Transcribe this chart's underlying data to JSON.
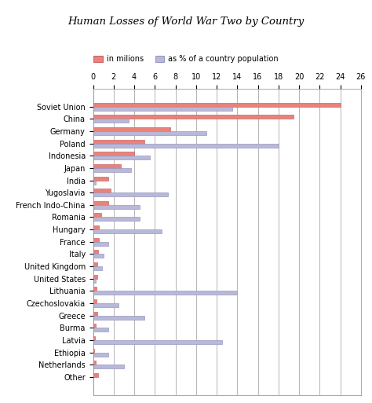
{
  "title": "Human Losses of World War Two by Country",
  "legend_millions": "in milions",
  "legend_percent": "as % of a country population",
  "countries": [
    "Soviet Union",
    "China",
    "Germany",
    "Poland",
    "Indonesia",
    "Japan",
    "India",
    "Yugoslavia",
    "French Indo-China",
    "Romania",
    "Hungary",
    "France",
    "Italy",
    "United Kingdom",
    "United States",
    "Lithuania",
    "Czechoslovakia",
    "Greece",
    "Burma",
    "Latvia",
    "Ethiopia",
    "Netherlands",
    "Other"
  ],
  "millions": [
    24.0,
    19.5,
    7.5,
    5.0,
    4.0,
    2.7,
    1.5,
    1.7,
    1.5,
    0.8,
    0.6,
    0.6,
    0.5,
    0.45,
    0.4,
    0.35,
    0.35,
    0.4,
    0.25,
    0.2,
    0.1,
    0.25,
    0.5
  ],
  "percent": [
    13.5,
    3.5,
    11.0,
    18.0,
    5.5,
    3.7,
    0.3,
    7.3,
    4.5,
    4.5,
    6.7,
    1.5,
    1.0,
    0.9,
    0.3,
    14.0,
    2.5,
    5.0,
    1.5,
    12.5,
    1.5,
    3.0,
    0.0
  ],
  "color_millions": "#e8827a",
  "color_percent": "#b8b8d8",
  "color_millions_edge": "#cc6666",
  "color_percent_edge": "#9898c0",
  "xlim": [
    0,
    26
  ],
  "xticks": [
    0,
    2,
    4,
    6,
    8,
    10,
    12,
    14,
    16,
    18,
    20,
    22,
    24,
    26
  ],
  "background_color": "#ffffff",
  "bar_height": 0.32,
  "grid_color": "#999999",
  "title_fontsize": 9.5,
  "tick_fontsize": 7,
  "ylabel_fontsize": 7
}
